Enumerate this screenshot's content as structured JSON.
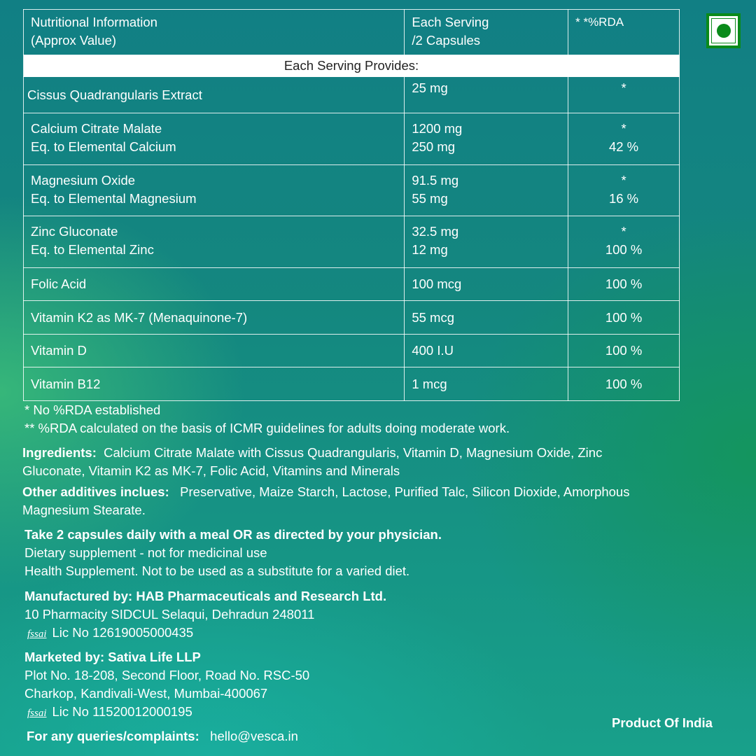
{
  "table": {
    "header": {
      "col1": [
        "Nutritional Information",
        "(Approx Value)"
      ],
      "col2": [
        "Each Serving",
        "/2 Capsules"
      ],
      "col3": "* *%RDA"
    },
    "band": "Each Serving Provides:",
    "rows": [
      {
        "name": [
          "Cissus Quadrangularis Extract"
        ],
        "amount": [
          "25 mg"
        ],
        "rda": [
          "*"
        ]
      },
      {
        "name": [
          "Calcium Citrate Malate",
          "Eq. to Elemental Calcium"
        ],
        "amount": [
          "1200 mg",
          "250 mg"
        ],
        "rda": [
          "*",
          "42 %"
        ]
      },
      {
        "name": [
          "Magnesium Oxide",
          "Eq. to Elemental Magnesium"
        ],
        "amount": [
          "91.5 mg",
          "55 mg"
        ],
        "rda": [
          "*",
          "16 %"
        ]
      },
      {
        "name": [
          "Zinc Gluconate",
          "Eq. to Elemental Zinc"
        ],
        "amount": [
          "32.5 mg",
          "12 mg"
        ],
        "rda": [
          "*",
          "100 %"
        ]
      },
      {
        "name": [
          "Folic Acid"
        ],
        "amount": [
          "100 mcg"
        ],
        "rda": [
          "100 %"
        ]
      },
      {
        "name": [
          "Vitamin K2 as MK-7 (Menaquinone-7)"
        ],
        "amount": [
          "55 mcg"
        ],
        "rda": [
          "100 %"
        ]
      },
      {
        "name": [
          "Vitamin D"
        ],
        "amount": [
          "400 I.U"
        ],
        "rda": [
          "100 %"
        ]
      },
      {
        "name": [
          "Vitamin B12"
        ],
        "amount": [
          "1 mcg"
        ],
        "rda": [
          "100 %"
        ]
      }
    ]
  },
  "veg_mark_color": "#0a8a1a",
  "notes": [
    "* No %RDA established",
    "** %RDA calculated on the basis of ICMR guidelines for adults doing moderate work."
  ],
  "ingredients": {
    "label": "Ingredients:",
    "line1": "Calcium Citrate Malate with Cissus Quadrangularis, Vitamin D, Magnesium Oxide, Zinc",
    "line2": "Gluconate, Vitamin K2 as MK-7, Folic Acid, Vitamins and Minerals"
  },
  "additives": {
    "label": "Other additives inclues:",
    "line1": "Preservative, Maize Starch, Lactose, Purified Talc, Silicon Dioxide, Amorphous",
    "line2": "Magnesium Stearate."
  },
  "directions": {
    "bold": "Take 2 capsules daily with a meal OR as directed by your physician.",
    "line1": "Dietary supplement - not for medicinal use",
    "line2": "Health Supplement. Not to be used as a substitute for a varied diet."
  },
  "manufacturer": {
    "title": "Manufactured by: HAB Pharmaceuticals and Research Ltd.",
    "address": "10 Pharmacity SIDCUL Selaqui, Dehradun 248011",
    "fssai": "fssai",
    "license": "Lic No 12619005000435"
  },
  "marketer": {
    "title": "Marketed by: Sativa Life LLP",
    "address1": "Plot No. 18-208, Second Floor, Road No. RSC-50",
    "address2": "Charkop, Kandivali-West, Mumbai-400067",
    "fssai": "fssai",
    "license": "Lic No 11520012000195"
  },
  "contact": {
    "label": "For any queries/complaints:",
    "email": "hello@vesca.in"
  },
  "origin": "Product Of India"
}
